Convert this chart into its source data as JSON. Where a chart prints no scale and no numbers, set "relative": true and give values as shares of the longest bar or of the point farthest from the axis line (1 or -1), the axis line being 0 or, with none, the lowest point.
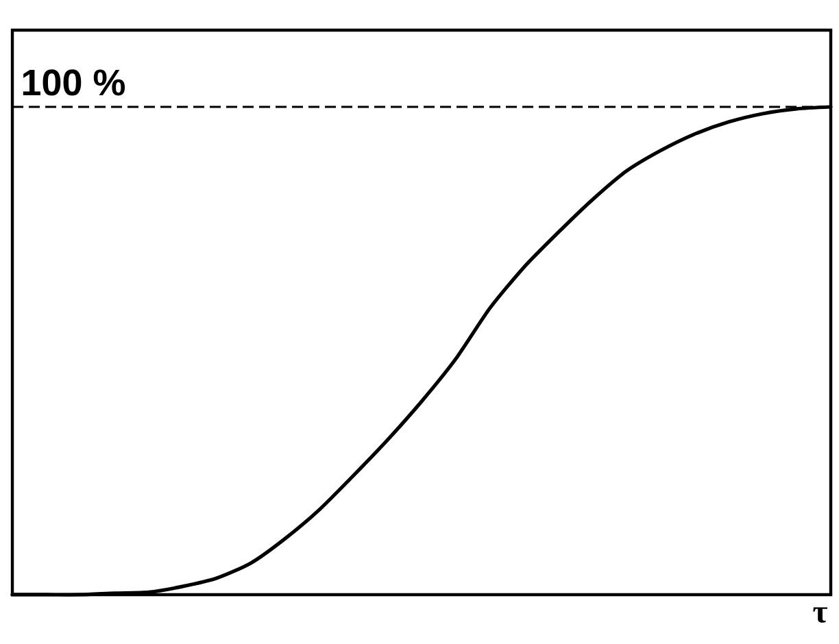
{
  "chart_data": {
    "type": "line",
    "xlabel": "τ",
    "relative": true,
    "categories": [
      null,
      null,
      null,
      null,
      null,
      null,
      null,
      null,
      null,
      null,
      null,
      null,
      null,
      null,
      null,
      null,
      null,
      null,
      null,
      null,
      null,
      null,
      null,
      null,
      null
    ],
    "values": [
      0,
      0,
      0,
      0.003,
      0.005,
      0.017,
      0.034,
      0.065,
      0.115,
      0.174,
      0.244,
      0.317,
      0.396,
      0.483,
      0.587,
      0.671,
      0.742,
      0.809,
      0.868,
      0.91,
      0.944,
      0.969,
      0.986,
      0.996,
      1
    ],
    "color": "#000000",
    "line_style": "solid",
    "ref_lines": [
      {
        "axis": "y",
        "value": 1,
        "label": "100 %",
        "line_style": "dashed",
        "color": "#000000"
      }
    ]
  }
}
